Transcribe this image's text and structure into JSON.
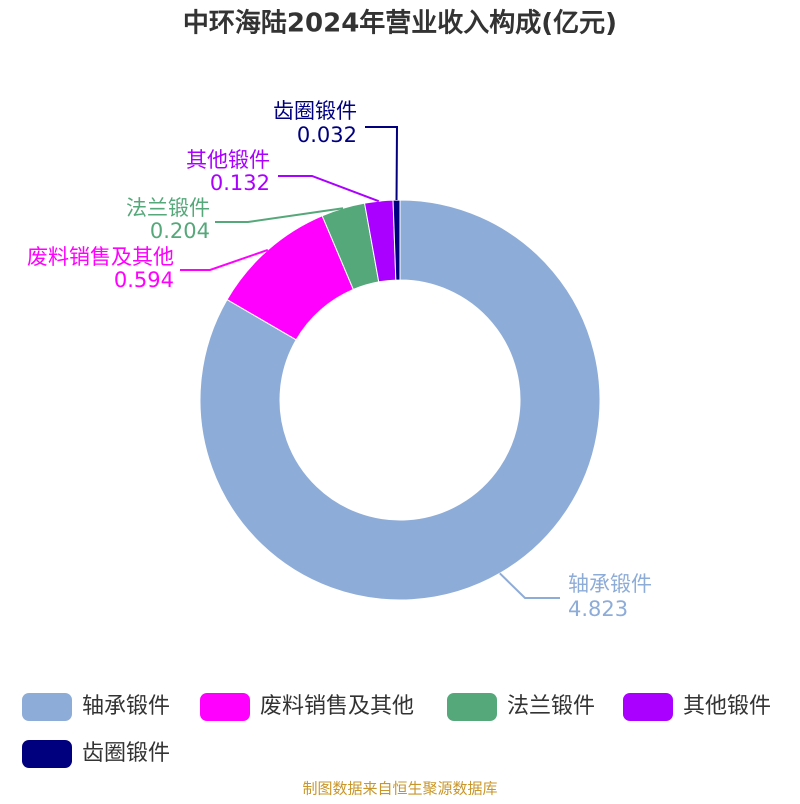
{
  "chart_data": {
    "type": "donut",
    "title": "中环海陆2024年营业收入构成(亿元)",
    "categories": [
      "轴承锻件",
      "废料销售及其他",
      "法兰锻件",
      "其他锻件",
      "齿圈锻件"
    ],
    "values": [
      4.823,
      0.594,
      0.204,
      0.132,
      0.032
    ],
    "colors": [
      "#8eacd8",
      "#ff00ff",
      "#55a87a",
      "#aa00ff",
      "#00007f"
    ],
    "source": "制图数据来自恒生聚源数据库"
  }
}
